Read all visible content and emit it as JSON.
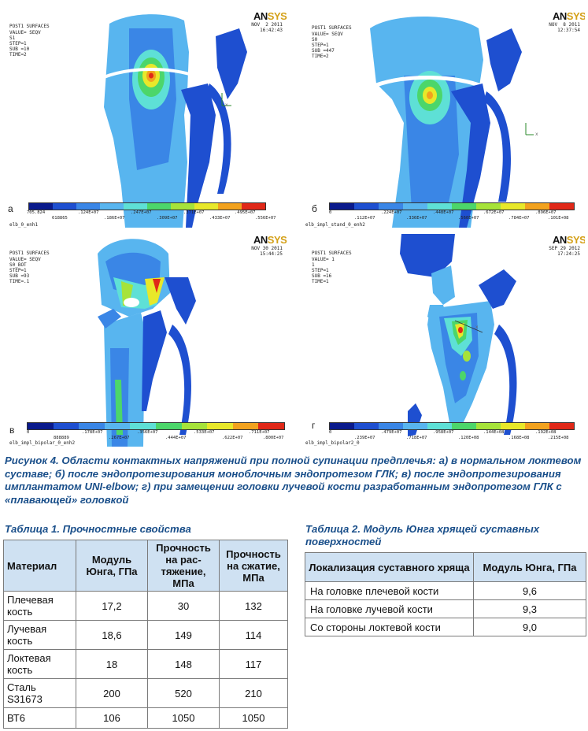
{
  "palette": [
    "#0a1a8c",
    "#1e4fd0",
    "#3a86e6",
    "#58b5ef",
    "#5ee0d6",
    "#4cd66a",
    "#a6e33a",
    "#e8e82a",
    "#f2a21e",
    "#e02818"
  ],
  "panels": [
    {
      "letter": "а",
      "header": [
        "POST1 SURFACES",
        "VALUE= SEQV",
        "S1",
        "STEP=1",
        "SUB =10",
        "TIME=2"
      ],
      "logo": "ANSYS",
      "date": [
        "NOV  2 2011",
        "16:42:43"
      ],
      "filename": "elb_0_enh1",
      "ticks_top": [
        "705.824",
        ".124E+07",
        ".247E+07",
        ".371E+07",
        ".495E+07"
      ],
      "ticks_bottom": [
        "618865",
        ".186E+07",
        ".309E+07",
        ".433E+07",
        ".556E+07"
      ]
    },
    {
      "letter": "б",
      "header": [
        "POST1 SURFACES",
        "VALUE= SEQV",
        "S0",
        "STEP=1",
        "SUB =447",
        "TIME=2"
      ],
      "logo": "ANSYS",
      "date": [
        "NOV  8 2011",
        "12:37:54"
      ],
      "filename": "elb_impl_stand_0_enh2",
      "ticks_top": [
        "0",
        ".224E+07",
        ".448E+07",
        ".672E+07",
        ".896E+07"
      ],
      "ticks_bottom": [
        ".112E+07",
        ".336E+07",
        ".560E+07",
        ".784E+07",
        ".101E+08"
      ]
    },
    {
      "letter": "в",
      "header": [
        "POST1 SURFACES",
        "VALUE= SEQV",
        "S0_BOT",
        "STEP=1",
        "SUB =93",
        "TIME=.1"
      ],
      "logo": "ANSYS",
      "date": [
        "NOV 30 2011",
        "15:44:25"
      ],
      "filename": "elb_impl_bipolar_0_enh2",
      "ticks_top": [
        "0",
        ".178E+07",
        ".356E+07",
        ".533E+07",
        ".711E+07"
      ],
      "ticks_bottom": [
        "888889",
        ".267E+07",
        ".444E+07",
        ".622E+07",
        ".800E+07"
      ]
    },
    {
      "letter": "г",
      "header": [
        "POST1 SURFACES",
        "VALUE= 1",
        "1",
        "STEP=1",
        "SUB =16",
        "TIME=1"
      ],
      "logo": "ANSYS",
      "date": [
        "SEP 29 2012",
        "17:24:25"
      ],
      "filename": "elb_impl_bipolar2_0",
      "ticks_top": [
        "0",
        ".479E+07",
        ".958E+07",
        ".144E+08",
        ".192E+08"
      ],
      "ticks_bottom": [
        ".239E+07",
        ".718E+07",
        ".120E+08",
        ".168E+08",
        ".215E+08"
      ]
    }
  ],
  "figure_caption": "Рисунок 4. Области контактных напряжений при полной супинации предплечья: а) в нормальном локтевом суставе; б) после эндопротезирования моноблочным эндопротезом ГЛК; в) после эндопротезирования имплантатом UNI-elbow; г) при замещении головки лучевой кости разработанным эндопротезом ГЛК с «плавающей» головкой",
  "table1": {
    "caption": "Таблица 1. Прочностные свойства",
    "headers": [
      "Материал",
      "Модуль Юнга, ГПа",
      "Прочность на рас-тяжение, МПа",
      "Прочность на сжатие, МПа"
    ],
    "rows": [
      [
        "Плечевая кость",
        "17,2",
        "30",
        "132"
      ],
      [
        "Лучевая кость",
        "18,6",
        "149",
        "114"
      ],
      [
        "Локтевая кость",
        "18",
        "148",
        "117"
      ],
      [
        "Сталь S31673",
        "200",
        "520",
        "210"
      ],
      [
        "ВТ6",
        "106",
        "1050",
        "1050"
      ]
    ]
  },
  "table2": {
    "caption": "Таблица 2. Модуль Юнга хрящей суставных поверхностей",
    "headers": [
      "Локализация суставного хряща",
      "Модуль Юнга, ГПа"
    ],
    "rows": [
      [
        "На головке плечевой кости",
        "9,6"
      ],
      [
        "На головке лучевой кости",
        "9,3"
      ],
      [
        "Со стороны локтевой кости",
        "9,0"
      ]
    ]
  }
}
